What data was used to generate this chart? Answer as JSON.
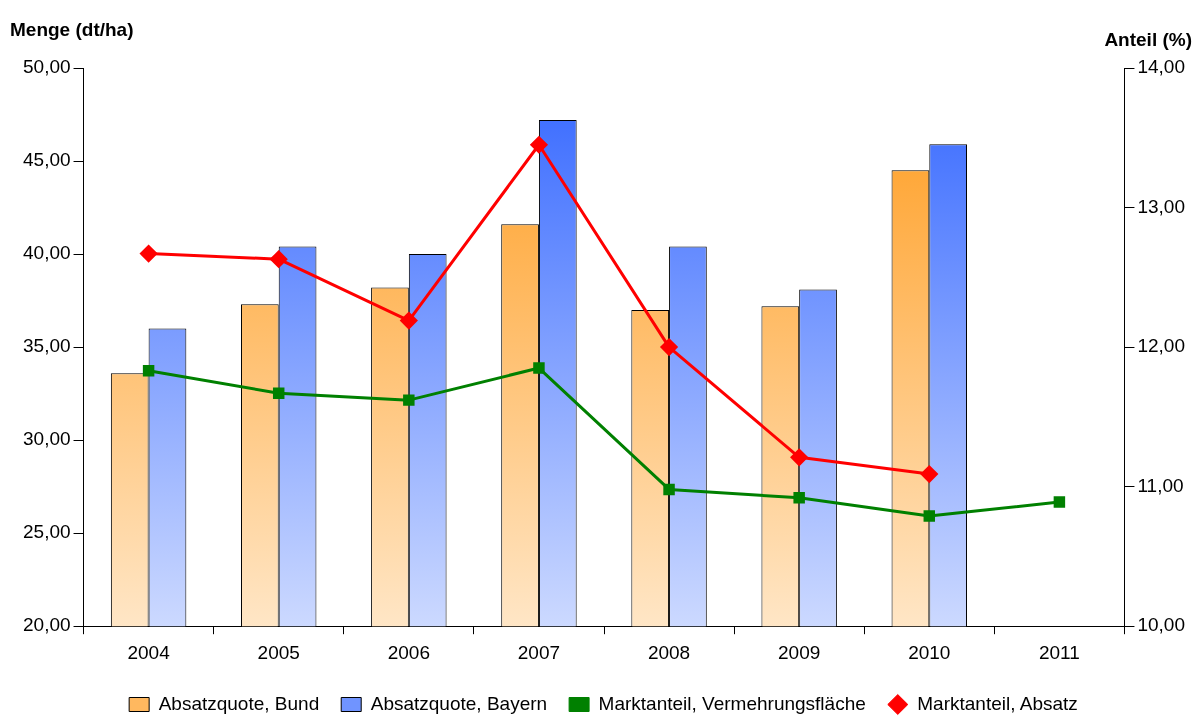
{
  "chart_data": {
    "type": "bar",
    "ylabel": "Menge (dt/ha)",
    "y2label": "Anteil (%)",
    "categories": [
      "2004",
      "2005",
      "2006",
      "2007",
      "2008",
      "2009",
      "2010",
      "2011"
    ],
    "series": [
      {
        "name": "Absatzquote, Bund",
        "color": "#ff9a1a",
        "values": [
          33.6,
          37.3,
          38.2,
          41.6,
          37.0,
          37.2,
          44.5,
          null
        ]
      },
      {
        "name": "Absatzquote, Bayern",
        "color": "#3366ff",
        "values": [
          36.0,
          40.4,
          40.0,
          47.2,
          40.4,
          38.1,
          45.9,
          null
        ]
      },
      {
        "name": "Marktanteil, Vermehrungsfläche",
        "type": "line",
        "axis": "y2",
        "color": "#008000",
        "marker": "square",
        "values": [
          11.83,
          11.67,
          11.62,
          11.85,
          10.98,
          10.92,
          10.79,
          10.89
        ]
      },
      {
        "name": "Marktanteil, Absatz",
        "type": "line",
        "axis": "y2",
        "color": "#ff0000",
        "marker": "diamond",
        "values": [
          12.67,
          12.63,
          12.19,
          13.45,
          12.0,
          11.21,
          11.09,
          null
        ]
      }
    ],
    "ylim": [
      20,
      50
    ],
    "yticks": [
      {
        "value": 20,
        "label": "20,00"
      },
      {
        "value": 25,
        "label": "25,00"
      },
      {
        "value": 30,
        "label": "30,00"
      },
      {
        "value": 35,
        "label": "35,00"
      },
      {
        "value": 40,
        "label": "40,00"
      },
      {
        "value": 45,
        "label": "45,00"
      },
      {
        "value": 50,
        "label": "50,00"
      }
    ],
    "y2lim": [
      10,
      14
    ],
    "y2ticks": [
      {
        "value": 10,
        "label": "10,00"
      },
      {
        "value": 11,
        "label": "11,00"
      },
      {
        "value": 12,
        "label": "12,00"
      },
      {
        "value": 13,
        "label": "13,00"
      },
      {
        "value": 14,
        "label": "14,00"
      }
    ],
    "grid": false,
    "legend": "bottom"
  }
}
